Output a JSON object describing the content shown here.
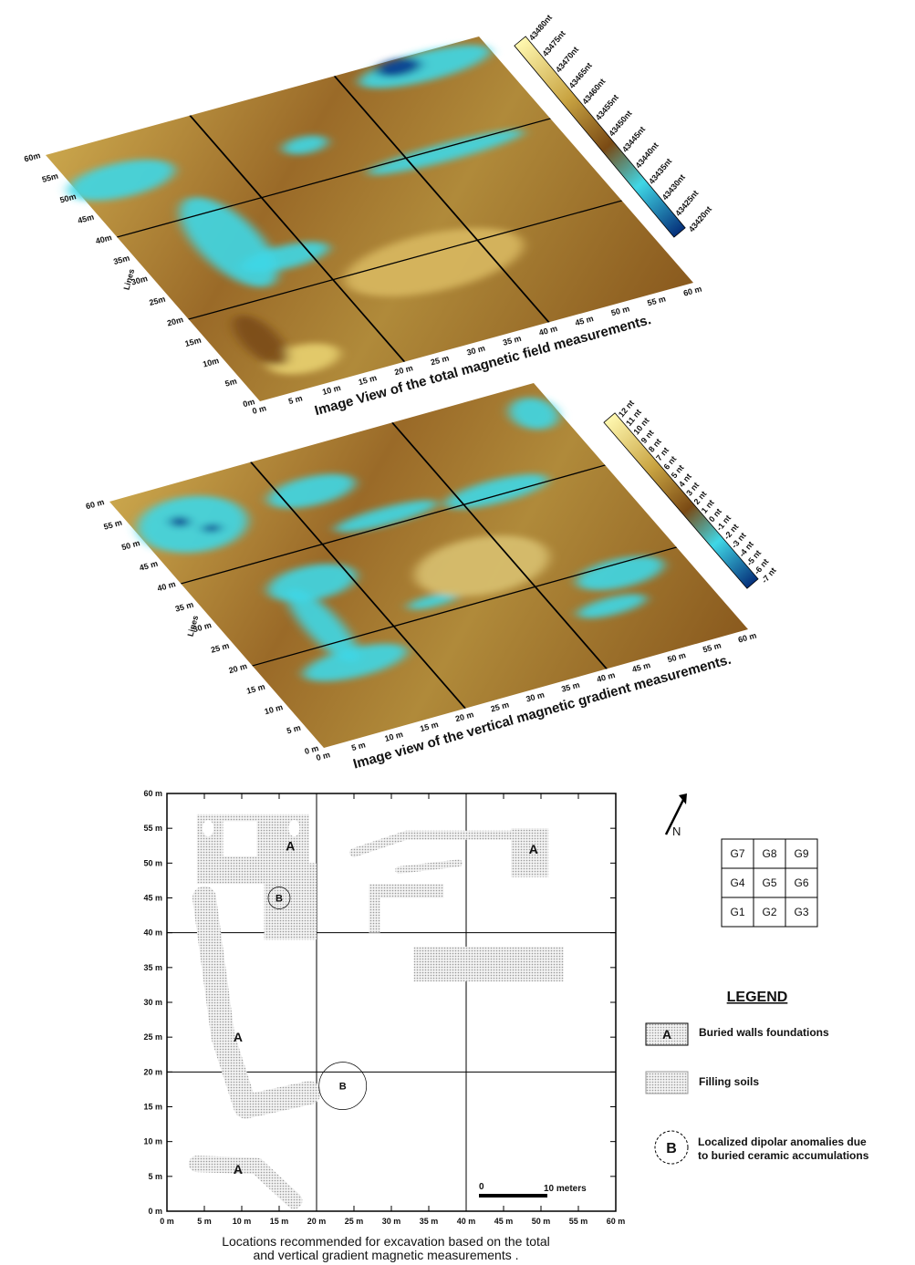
{
  "panel_total": {
    "caption": "Image View of the total magnetic field  measurements.",
    "y_label": "Lines",
    "y_ticks": [
      "0m",
      "5m",
      "10m",
      "15m",
      "20m",
      "25m",
      "30m",
      "35m",
      "40m",
      "45m",
      "50m",
      "55m",
      "60m"
    ],
    "x_ticks": [
      "0 m",
      "5 m",
      "10 m",
      "15 m",
      "20 m",
      "25 m",
      "30 m",
      "35 m",
      "40 m",
      "45 m",
      "50 m",
      "55 m",
      "60 m"
    ],
    "colorbar": [
      "43480nt",
      "43475nt",
      "43470nt",
      "43465nt",
      "43460nt",
      "43455nt",
      "43450nt",
      "43445nt",
      "43440nt",
      "43435nt",
      "43430nt",
      "43425nt",
      "43420nt"
    ]
  },
  "panel_gradient": {
    "caption": "Image view of the vertical magnetic gradient measurements.",
    "y_label": "Lines",
    "y_ticks": [
      "0 m",
      "5 m",
      "10 m",
      "15 m",
      "20 m",
      "25 m",
      "30 m",
      "35 m",
      "40 m",
      "45 m",
      "50 m",
      "55 m",
      "60 m"
    ],
    "x_ticks": [
      "0 m",
      "5 m",
      "10 m",
      "15 m",
      "20 m",
      "25 m",
      "30 m",
      "35 m",
      "40 m",
      "45 m",
      "50 m",
      "55 m",
      "60 m"
    ],
    "colorbar": [
      "12 nt",
      "11 nt",
      "10 nt",
      "9 nt",
      "8 nt",
      "7 nt",
      "6 nt",
      "5 nt",
      "4 nt",
      "3 nt",
      "2 nt",
      "1 nt",
      "0 nt",
      "-1 nt",
      "-2 nt",
      "-3 nt",
      "-4 nt",
      "-5 nt",
      "-6 nt",
      "-7 nt"
    ]
  },
  "map": {
    "y_ticks": [
      "0 m",
      "5 m",
      "10 m",
      "15 m",
      "20 m",
      "25 m",
      "30 m",
      "35 m",
      "40 m",
      "45 m",
      "50 m",
      "55 m",
      "60 m"
    ],
    "x_ticks": [
      "0 m",
      "5 m",
      "10 m",
      "15 m",
      "20 m",
      "25 m",
      "30 m",
      "35 m",
      "40 m",
      "45 m",
      "50 m",
      "55 m",
      "60 m"
    ],
    "labels_a": [
      "A",
      "A",
      "A",
      "A"
    ],
    "labels_b": [
      "B",
      "B"
    ],
    "scale_zero": "0",
    "scale_text": "10 meters",
    "caption": [
      "Locations recommended for excavation based on the total",
      "and vertical gradient magnetic measurements ."
    ],
    "north": "N",
    "grid_cells": [
      [
        "G7",
        "G8",
        "G9"
      ],
      [
        "G4",
        "G5",
        "G6"
      ],
      [
        "G1",
        "G2",
        "G3"
      ]
    ],
    "legend": {
      "title": "LEGEND",
      "walls_symbol": "A",
      "walls": "Buried walls foundations",
      "filling": "Filling soils",
      "dipole_symbol": "B",
      "dipole": [
        "Localized dipolar anomalies due",
        "to buried ceramic accumulations"
      ]
    }
  }
}
